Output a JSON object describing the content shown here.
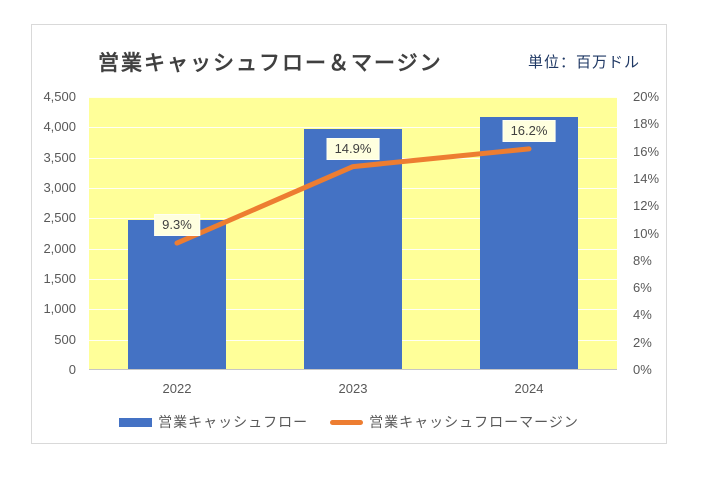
{
  "chart": {
    "title": "営業キャッシュフロー＆マージン",
    "unit_label": "単位：百万ドル"
  },
  "chart_data": {
    "type": "combo-bar-line",
    "title": "営業キャッシュフロー＆マージン",
    "unit": "百万ドル",
    "categories": [
      "2022",
      "2023",
      "2024"
    ],
    "series": [
      {
        "name": "営業キャッシュフロー",
        "type": "bar",
        "axis": "left",
        "color": "#4472C4",
        "values": [
          2450,
          3950,
          4160
        ]
      },
      {
        "name": "営業キャッシュフローマージン",
        "type": "line",
        "axis": "right",
        "color": "#ED7D31",
        "values": [
          9.3,
          14.9,
          16.2
        ],
        "data_labels": [
          "9.3%",
          "14.9%",
          "16.2%"
        ]
      }
    ],
    "left_axis": {
      "min": 0,
      "max": 4500,
      "step": 500,
      "ticks": [
        "4,500",
        "4,000",
        "3,500",
        "3,000",
        "2,500",
        "2,000",
        "1,500",
        "1,000",
        "500",
        "0"
      ]
    },
    "right_axis": {
      "min": 0,
      "max": 20,
      "step": 2,
      "ticks": [
        "20%",
        "18%",
        "16%",
        "14%",
        "12%",
        "10%",
        "8%",
        "6%",
        "4%",
        "2%",
        "0%"
      ]
    },
    "plot_background": "#FFFF99",
    "gridlines": true,
    "legend_position": "bottom"
  },
  "legend": {
    "items": [
      {
        "label": "営業キャッシュフロー",
        "swatch": "bar",
        "color": "#4472C4"
      },
      {
        "label": "営業キャッシュフローマージン",
        "swatch": "line",
        "color": "#ED7D31"
      }
    ]
  },
  "colors": {
    "bar": "#4472C4",
    "line": "#ED7D31",
    "plot_bg": "#FFFF99",
    "title_text": "#404040",
    "unit_text": "#1F3864",
    "axis_text": "#595959",
    "frame_border": "#D9D9D9",
    "data_label_bg": "#FFFFDF"
  }
}
